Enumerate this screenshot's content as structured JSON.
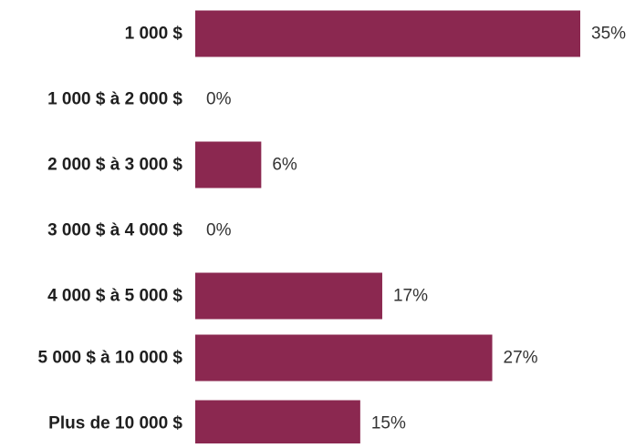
{
  "chart_data": {
    "type": "bar",
    "orientation": "horizontal",
    "categories": [
      "1 000 $",
      "1 000 $ à 2 000 $",
      "2 000 $ à 3 000 $",
      "3 000 $ à 4 000 $",
      "4 000 $ à 5 000 $",
      "5 000 $ à 10 000 $",
      "Plus de 10 000 $"
    ],
    "values": [
      35,
      0,
      6,
      0,
      17,
      27,
      15
    ],
    "value_labels": [
      "35%",
      "0%",
      "6%",
      "0%",
      "17%",
      "27%",
      "15%"
    ],
    "unit": "%",
    "title": "",
    "xlabel": "",
    "ylabel": "",
    "xlim": [
      0,
      35
    ],
    "grid": false,
    "legend": "none",
    "colors": {
      "bar": "#8b2850",
      "category_text": "#1f1f1f",
      "value_text": "#333333"
    }
  }
}
